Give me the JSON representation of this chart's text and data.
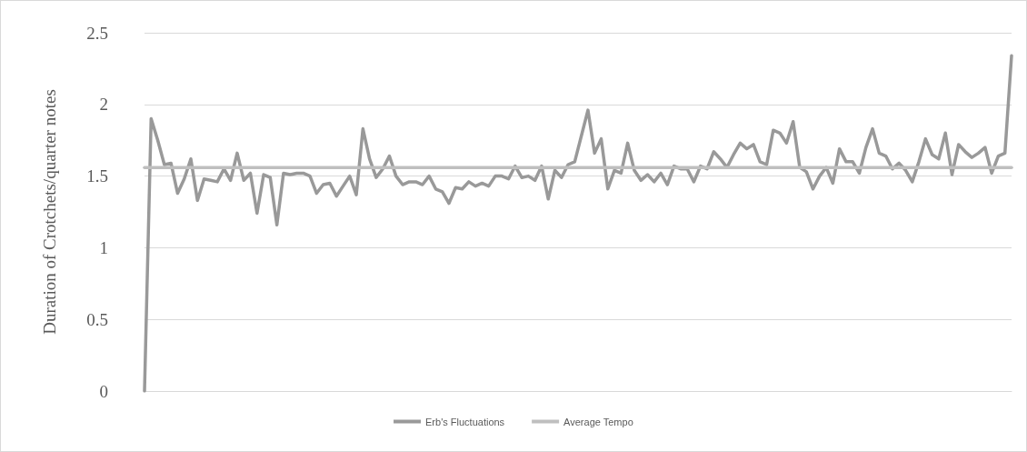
{
  "chart_data": {
    "type": "line",
    "ylabel": "Duration of Crotchets/quarter notes",
    "categories": [
      null,
      null,
      null,
      null,
      null,
      null,
      null,
      null,
      null,
      null,
      null,
      null,
      null,
      null,
      null,
      null,
      null,
      null,
      null,
      null,
      null,
      null,
      null,
      null,
      null,
      null,
      null,
      null,
      null,
      null,
      null,
      null,
      null,
      null,
      null,
      null,
      null,
      null,
      null,
      null,
      null,
      null,
      null,
      null,
      null,
      null,
      null,
      null,
      null,
      null,
      null,
      null,
      null,
      null,
      null,
      null,
      null,
      null,
      null,
      null,
      null,
      null,
      null,
      null,
      null,
      null,
      null,
      null,
      null,
      null,
      null,
      null,
      null,
      null,
      null,
      null,
      null,
      null,
      null,
      null,
      null,
      null,
      null,
      null,
      null,
      null,
      null,
      null,
      null,
      null,
      null,
      null,
      null,
      null,
      null,
      null,
      null,
      null,
      null,
      null,
      null,
      null,
      null,
      null,
      null,
      null,
      null,
      null,
      null,
      null,
      null,
      null,
      null,
      null,
      null,
      null,
      null,
      null,
      null,
      null,
      null,
      null,
      null,
      null,
      null,
      null,
      null,
      null,
      null,
      null,
      null,
      null
    ],
    "series": [
      {
        "name": "Erb's Fluctuations",
        "color": "#999999",
        "values": [
          0,
          1.9,
          1.75,
          1.58,
          1.59,
          1.38,
          1.48,
          1.62,
          1.33,
          1.48,
          1.47,
          1.46,
          1.55,
          1.47,
          1.66,
          1.47,
          1.52,
          1.24,
          1.51,
          1.49,
          1.16,
          1.52,
          1.51,
          1.52,
          1.52,
          1.5,
          1.38,
          1.44,
          1.45,
          1.36,
          1.43,
          1.5,
          1.37,
          1.83,
          1.62,
          1.49,
          1.55,
          1.64,
          1.5,
          1.44,
          1.46,
          1.46,
          1.44,
          1.5,
          1.41,
          1.39,
          1.31,
          1.42,
          1.41,
          1.46,
          1.43,
          1.45,
          1.43,
          1.5,
          1.5,
          1.48,
          1.57,
          1.49,
          1.5,
          1.47,
          1.57,
          1.34,
          1.54,
          1.49,
          1.58,
          1.6,
          1.78,
          1.96,
          1.66,
          1.76,
          1.41,
          1.54,
          1.52,
          1.73,
          1.54,
          1.47,
          1.51,
          1.46,
          1.52,
          1.44,
          1.57,
          1.55,
          1.55,
          1.46,
          1.57,
          1.55,
          1.67,
          1.62,
          1.56,
          1.65,
          1.73,
          1.69,
          1.72,
          1.6,
          1.58,
          1.82,
          1.8,
          1.73,
          1.88,
          1.56,
          1.53,
          1.41,
          1.5,
          1.56,
          1.45,
          1.69,
          1.6,
          1.6,
          1.52,
          1.7,
          1.83,
          1.66,
          1.64,
          1.55,
          1.59,
          1.54,
          1.46,
          1.6,
          1.76,
          1.65,
          1.62,
          1.8,
          1.51,
          1.72,
          1.67,
          1.63,
          1.66,
          1.7,
          1.52,
          1.64,
          1.66,
          2.34
        ]
      },
      {
        "name": "Average Tempo",
        "color": "#bfbfbf",
        "values": [
          1.56,
          1.56,
          1.56,
          1.56,
          1.56,
          1.56,
          1.56,
          1.56,
          1.56,
          1.56,
          1.56,
          1.56,
          1.56,
          1.56,
          1.56,
          1.56,
          1.56,
          1.56,
          1.56,
          1.56,
          1.56,
          1.56,
          1.56,
          1.56,
          1.56,
          1.56,
          1.56,
          1.56,
          1.56,
          1.56,
          1.56,
          1.56,
          1.56,
          1.56,
          1.56,
          1.56,
          1.56,
          1.56,
          1.56,
          1.56,
          1.56,
          1.56,
          1.56,
          1.56,
          1.56,
          1.56,
          1.56,
          1.56,
          1.56,
          1.56,
          1.56,
          1.56,
          1.56,
          1.56,
          1.56,
          1.56,
          1.56,
          1.56,
          1.56,
          1.56,
          1.56,
          1.56,
          1.56,
          1.56,
          1.56,
          1.56,
          1.56,
          1.56,
          1.56,
          1.56,
          1.56,
          1.56,
          1.56,
          1.56,
          1.56,
          1.56,
          1.56,
          1.56,
          1.56,
          1.56,
          1.56,
          1.56,
          1.56,
          1.56,
          1.56,
          1.56,
          1.56,
          1.56,
          1.56,
          1.56,
          1.56,
          1.56,
          1.56,
          1.56,
          1.56,
          1.56,
          1.56,
          1.56,
          1.56,
          1.56,
          1.56,
          1.56,
          1.56,
          1.56,
          1.56,
          1.56,
          1.56,
          1.56,
          1.56,
          1.56,
          1.56,
          1.56,
          1.56,
          1.56,
          1.56,
          1.56,
          1.56,
          1.56,
          1.56,
          1.56,
          1.56,
          1.56,
          1.56,
          1.56,
          1.56,
          1.56,
          1.56,
          1.56,
          1.56,
          1.56,
          1.56,
          1.56
        ]
      }
    ],
    "ylim": [
      0,
      2.5
    ],
    "yticks": [
      0,
      0.5,
      1,
      1.5,
      2,
      2.5
    ],
    "grid": "y",
    "legend": "bottom",
    "line_style": "solid",
    "tick_labels": "y"
  }
}
